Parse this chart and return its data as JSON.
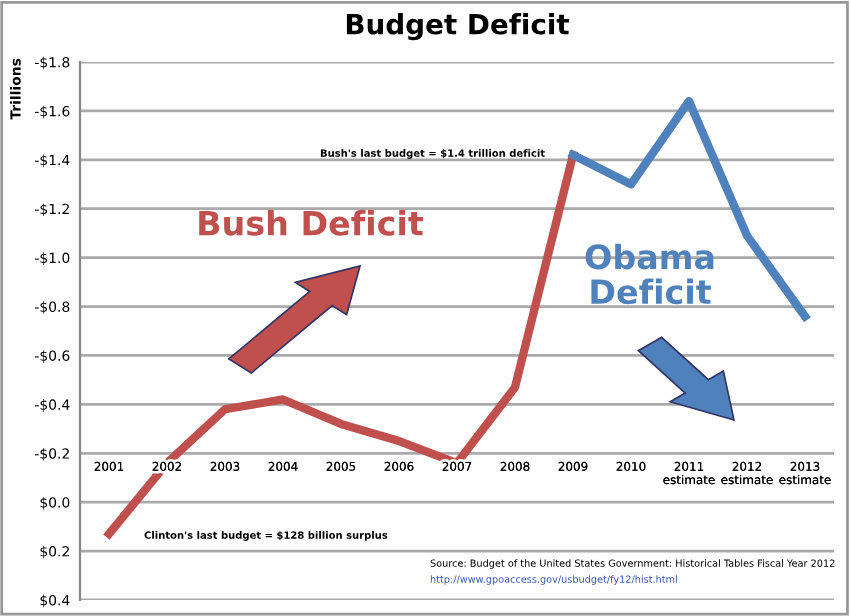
{
  "chart_data": {
    "type": "line",
    "title": "Budget Deficit",
    "ylabel": "Trillions",
    "categories": [
      "2001",
      "2002",
      "2003",
      "2004",
      "2005",
      "2006",
      "2007",
      "2008",
      "2009",
      "2010",
      "2011\nestimate",
      "2012\nestimate",
      "2013\nestimate"
    ],
    "series": [
      {
        "name": "Bush Deficit",
        "color": "#c0504d",
        "values": [
          0.13,
          -0.16,
          -0.38,
          -0.42,
          -0.32,
          -0.25,
          -0.16,
          -0.47,
          -1.42,
          null,
          null,
          null,
          null
        ]
      },
      {
        "name": "Obama\nDeficit",
        "color": "#4f81bd",
        "values": [
          null,
          null,
          null,
          null,
          null,
          null,
          null,
          null,
          -1.42,
          -1.3,
          -1.64,
          -1.09,
          -0.76
        ]
      }
    ],
    "ylim": [
      0.4,
      -1.8
    ],
    "yticks": [
      {
        "value": 0.4,
        "label": "$0.4"
      },
      {
        "value": 0.2,
        "label": "$0.2"
      },
      {
        "value": 0.0,
        "label": "$0.0"
      },
      {
        "value": -0.2,
        "label": "-$0.2"
      },
      {
        "value": -0.4,
        "label": "-$0.4"
      },
      {
        "value": -0.6,
        "label": "-$0.6"
      },
      {
        "value": -0.8,
        "label": "-$0.8"
      },
      {
        "value": -1.0,
        "label": "-$1.0"
      },
      {
        "value": -1.2,
        "label": "-$1.2"
      },
      {
        "value": -1.4,
        "label": "-$1.4"
      },
      {
        "value": -1.6,
        "label": "-$1.6"
      },
      {
        "value": -1.8,
        "label": "-$1.8"
      }
    ],
    "grid": "y",
    "marker": "none",
    "line_style": "solid",
    "annotations": [
      "Bush's last budget = $1.4 trillion deficit",
      "Clinton's last budget = $128 billion surplus",
      "Source: Budget of the United States Government: Historical Tables Fiscal Year 2012",
      "http://www.gpoaccess.gov/usbudget/fy12/hist.html"
    ]
  }
}
